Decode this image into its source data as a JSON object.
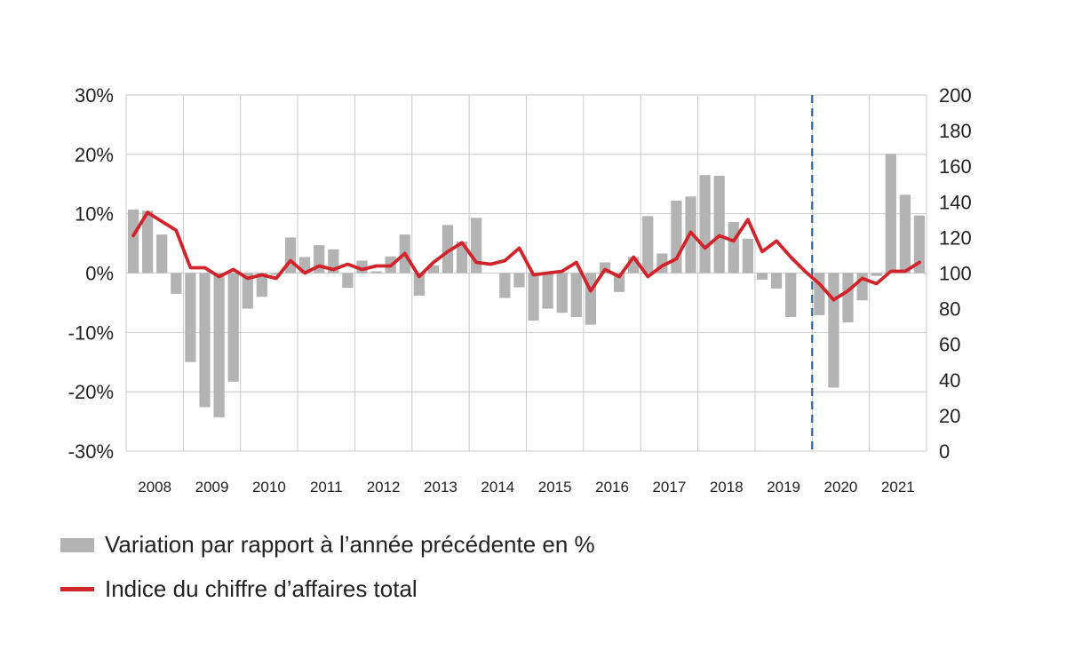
{
  "chart_data": {
    "type": "bar+line",
    "categories": [
      "2008",
      "2009",
      "2010",
      "2011",
      "2012",
      "2013",
      "2014",
      "2015",
      "2016",
      "2017",
      "2018",
      "2019",
      "2020",
      "2021"
    ],
    "quarters_per_year": 4,
    "bars": {
      "name": "Variation par rapport à l’année précédente en %",
      "color": "#b3b3b3",
      "values": [
        10.7,
        10.5,
        6.5,
        -3.5,
        -15.0,
        -22.6,
        -24.3,
        -18.3,
        -6.0,
        -4.0,
        -0.3,
        6.0,
        2.7,
        4.7,
        4.0,
        -2.5,
        2.1,
        0.3,
        2.8,
        6.5,
        -3.8,
        1.3,
        8.1,
        5.3,
        9.3,
        0.0,
        -4.2,
        -2.4,
        -8.0,
        -6.0,
        -6.7,
        -7.4,
        -8.7,
        1.8,
        -3.2,
        2.7,
        9.6,
        3.3,
        12.2,
        12.9,
        16.5,
        16.4,
        8.6,
        5.8,
        -1.1,
        -2.6,
        -7.4,
        0.0,
        -7.1,
        -19.3,
        -8.3,
        -4.6,
        -0.5,
        20.1,
        13.2,
        9.7
      ]
    },
    "line": {
      "name": "Indice du chiffre d’affaires total",
      "color": "#d1232a",
      "values": [
        121,
        134,
        129,
        124,
        103,
        103,
        98,
        102,
        97,
        99,
        97,
        107,
        100,
        104,
        102,
        105,
        102,
        104,
        104,
        111,
        98,
        106,
        112,
        117,
        106,
        105,
        107,
        114,
        99,
        100,
        101,
        106,
        90,
        102,
        98,
        109,
        98,
        104,
        108,
        123,
        114,
        121,
        118,
        130,
        112,
        118,
        109,
        101,
        94,
        85,
        90,
        97,
        94,
        101,
        101,
        106
      ]
    },
    "y_left": {
      "min": -30,
      "max": 30,
      "ticks": [
        "30%",
        "20%",
        "10%",
        "0%",
        "-10%",
        "-20%",
        "-30%"
      ],
      "tick_values": [
        30,
        20,
        10,
        0,
        -10,
        -20,
        -30
      ]
    },
    "y_right": {
      "min": 0,
      "max": 200,
      "ticks": [
        "200",
        "180",
        "160",
        "140",
        "120",
        "100",
        "80",
        "60",
        "40",
        "20",
        "0"
      ],
      "tick_values": [
        200,
        180,
        160,
        140,
        120,
        100,
        80,
        60,
        40,
        20,
        0
      ]
    },
    "grid": true,
    "marker_dashed_after_year": "2019",
    "marker_color": "#2a6496",
    "legend_position": "bottom"
  },
  "legend": {
    "bars_label": "Variation par rapport à l’année précédente en %",
    "line_label": "Indice du chiffre d’affaires total"
  }
}
